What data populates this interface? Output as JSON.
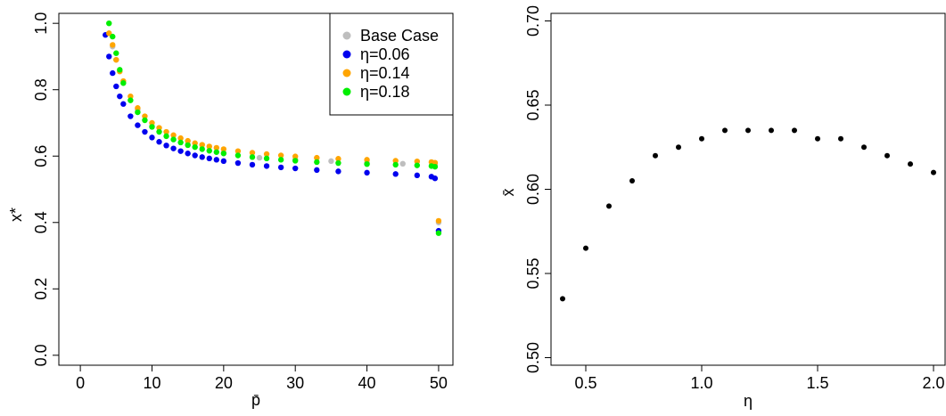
{
  "chart_data": [
    {
      "type": "scatter",
      "title": "",
      "xlabel": "p̄",
      "ylabel": "x*",
      "xlim": [
        -3,
        52
      ],
      "ylim": [
        -0.03,
        1.03
      ],
      "xticks": [
        0,
        10,
        20,
        30,
        40,
        50
      ],
      "yticks": [
        0.0,
        0.2,
        0.4,
        0.6,
        0.8,
        1.0
      ],
      "xtick_labels": [
        "0",
        "10",
        "20",
        "30",
        "40",
        "50"
      ],
      "ytick_labels": [
        "0.0",
        "0.2",
        "0.4",
        "0.6",
        "0.8",
        "1.0"
      ],
      "grid": false,
      "legend_position": "top-right",
      "series": [
        {
          "name": "Base Case",
          "color": "#bebebe",
          "x": [
            4,
            4.5,
            5,
            6,
            8,
            10,
            15,
            20,
            25,
            30,
            35,
            40,
            45,
            49.5,
            50
          ],
          "y": [
            0.97,
            0.93,
            0.89,
            0.82,
            0.74,
            0.69,
            0.635,
            0.61,
            0.595,
            0.59,
            0.585,
            0.58,
            0.577,
            0.575,
            0.4
          ]
        },
        {
          "name": "η=0.06",
          "color": "#0000ee",
          "x": [
            3.5,
            4,
            4.5,
            5,
            5.5,
            6,
            7,
            8,
            9,
            10,
            11,
            12,
            13,
            14,
            15,
            16,
            17,
            18,
            19,
            20,
            22,
            24,
            26,
            28,
            30,
            33,
            36,
            40,
            44,
            47,
            49,
            49.5,
            50
          ],
          "y": [
            0.965,
            0.9,
            0.85,
            0.81,
            0.78,
            0.757,
            0.72,
            0.693,
            0.673,
            0.656,
            0.643,
            0.632,
            0.623,
            0.615,
            0.608,
            0.602,
            0.597,
            0.593,
            0.589,
            0.585,
            0.579,
            0.574,
            0.57,
            0.566,
            0.563,
            0.558,
            0.554,
            0.55,
            0.546,
            0.542,
            0.538,
            0.533,
            0.375
          ]
        },
        {
          "name": "η=0.14",
          "color": "#ffa500",
          "x": [
            4,
            4.5,
            5,
            5.5,
            6,
            7,
            8,
            9,
            10,
            11,
            12,
            13,
            14,
            15,
            16,
            17,
            18,
            19,
            20,
            22,
            24,
            26,
            28,
            30,
            33,
            36,
            40,
            44,
            47,
            49,
            49.5,
            50
          ],
          "y": [
            0.97,
            0.935,
            0.89,
            0.855,
            0.826,
            0.78,
            0.745,
            0.72,
            0.7,
            0.685,
            0.673,
            0.663,
            0.654,
            0.646,
            0.639,
            0.634,
            0.629,
            0.625,
            0.621,
            0.615,
            0.61,
            0.606,
            0.602,
            0.599,
            0.595,
            0.592,
            0.589,
            0.586,
            0.584,
            0.582,
            0.58,
            0.405
          ]
        },
        {
          "name": "η=0.18",
          "color": "#00ee00",
          "x": [
            4,
            4.5,
            5,
            5.5,
            6,
            7,
            8,
            9,
            10,
            11,
            12,
            13,
            14,
            15,
            16,
            17,
            18,
            19,
            20,
            22,
            24,
            26,
            28,
            30,
            33,
            36,
            40,
            44,
            47,
            49,
            49.5,
            50
          ],
          "y": [
            1.0,
            0.96,
            0.91,
            0.86,
            0.82,
            0.768,
            0.732,
            0.708,
            0.688,
            0.673,
            0.66,
            0.65,
            0.641,
            0.633,
            0.627,
            0.621,
            0.616,
            0.612,
            0.608,
            0.602,
            0.597,
            0.593,
            0.589,
            0.586,
            0.582,
            0.579,
            0.576,
            0.574,
            0.572,
            0.57,
            0.568,
            0.368
          ]
        }
      ]
    },
    {
      "type": "scatter",
      "title": "",
      "xlabel": "η",
      "ylabel": "x̄",
      "xlim": [
        0.35,
        2.05
      ],
      "ylim": [
        0.4955,
        0.7045
      ],
      "xticks": [
        0.5,
        1.0,
        1.5,
        2.0
      ],
      "yticks": [
        0.5,
        0.55,
        0.6,
        0.65,
        0.7
      ],
      "xtick_labels": [
        "0.5",
        "1.0",
        "1.5",
        "2.0"
      ],
      "ytick_labels": [
        "0.50",
        "0.55",
        "0.60",
        "0.65",
        "0.70"
      ],
      "grid": false,
      "series": [
        {
          "color": "#000000",
          "x": [
            0.4,
            0.5,
            0.6,
            0.7,
            0.8,
            0.9,
            1.0,
            1.1,
            1.2,
            1.3,
            1.4,
            1.5,
            1.6,
            1.7,
            1.8,
            1.9,
            2.0
          ],
          "y": [
            0.535,
            0.565,
            0.59,
            0.605,
            0.62,
            0.625,
            0.63,
            0.635,
            0.635,
            0.635,
            0.635,
            0.63,
            0.63,
            0.625,
            0.62,
            0.615,
            0.61
          ]
        }
      ]
    }
  ]
}
